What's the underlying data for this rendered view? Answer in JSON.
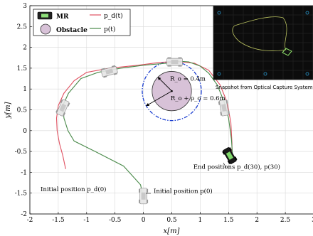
{
  "chart_data": {
    "type": "line",
    "xlabel": "x[m]",
    "ylabel": "y[m]",
    "xlim": [
      -2,
      3
    ],
    "ylim": [
      -2,
      3
    ],
    "xticks": [
      "-2",
      "-1.5",
      "-1",
      "-0.5",
      "0",
      "0.5",
      "1",
      "1.5",
      "2",
      "2.5",
      "3"
    ],
    "yticks": [
      "-2",
      "-1.5",
      "-1",
      "-0.5",
      "0",
      "0.5",
      "1",
      "1.5",
      "2",
      "2.5",
      "3"
    ],
    "grid": true,
    "legend": {
      "placement": "top-left",
      "items": [
        {
          "label": "MR",
          "kind": "robot"
        },
        {
          "label": "Obstacle",
          "kind": "obstacle"
        },
        {
          "label": "p_d(t)",
          "kind": "line",
          "color": "#e05060"
        },
        {
          "label": "p(t)",
          "kind": "line",
          "color": "#4a8a4a"
        }
      ]
    },
    "series": [
      {
        "name": "p_d(t)",
        "color": "#e05060",
        "points": [
          [
            -1.37,
            -0.92
          ],
          [
            -1.42,
            -0.6
          ],
          [
            -1.48,
            -0.3
          ],
          [
            -1.52,
            0.0
          ],
          [
            -1.53,
            0.3
          ],
          [
            -1.5,
            0.6
          ],
          [
            -1.4,
            0.9
          ],
          [
            -1.22,
            1.2
          ],
          [
            -1.0,
            1.4
          ],
          [
            -0.6,
            1.5
          ],
          [
            -0.1,
            1.57
          ],
          [
            0.3,
            1.64
          ],
          [
            0.6,
            1.66
          ],
          [
            0.9,
            1.62
          ],
          [
            1.15,
            1.45
          ],
          [
            1.35,
            1.1
          ],
          [
            1.47,
            0.7
          ],
          [
            1.54,
            0.2
          ],
          [
            1.56,
            -0.3
          ],
          [
            1.56,
            -0.7
          ]
        ]
      },
      {
        "name": "p(t)",
        "color": "#4a8a4a",
        "points": [
          [
            0.0,
            -1.62
          ],
          [
            -0.05,
            -1.3
          ],
          [
            -0.35,
            -0.85
          ],
          [
            -0.85,
            -0.5
          ],
          [
            -1.22,
            -0.25
          ],
          [
            -1.33,
            0.0
          ],
          [
            -1.4,
            0.3
          ],
          [
            -1.42,
            0.6
          ],
          [
            -1.32,
            0.9
          ],
          [
            -1.1,
            1.25
          ],
          [
            -0.8,
            1.4
          ],
          [
            -0.4,
            1.5
          ],
          [
            0.0,
            1.57
          ],
          [
            0.4,
            1.62
          ],
          [
            0.6,
            1.67
          ],
          [
            0.8,
            1.65
          ],
          [
            1.0,
            1.55
          ],
          [
            1.15,
            1.38
          ],
          [
            1.3,
            1.1
          ],
          [
            1.42,
            0.7
          ],
          [
            1.5,
            0.3
          ],
          [
            1.55,
            -0.2
          ],
          [
            1.57,
            -0.6
          ]
        ]
      }
    ],
    "obstacle": {
      "center": [
        0.5,
        0.95
      ],
      "radius": 0.4,
      "safety_radius": 0.6
    },
    "robots": [
      {
        "x": 0.0,
        "y": -1.57,
        "angle": 90,
        "style": "faded"
      },
      {
        "x": -1.42,
        "y": 0.55,
        "angle": 65,
        "style": "faded"
      },
      {
        "x": -0.6,
        "y": 1.42,
        "angle": 15,
        "style": "faded"
      },
      {
        "x": 0.55,
        "y": 1.65,
        "angle": 0,
        "style": "faded"
      },
      {
        "x": 1.42,
        "y": 0.55,
        "angle": -80,
        "style": "faded"
      },
      {
        "x": 1.52,
        "y": -0.6,
        "angle": -60,
        "style": "dark"
      }
    ],
    "annotations": [
      {
        "text": "R_o = 0.4m",
        "x": 0.47,
        "y": 1.2
      },
      {
        "text": "R_o + ρ_o = 0.6m",
        "x": 0.48,
        "y": 0.73
      },
      {
        "text": "Initial position p_d(0)",
        "x": -2.0,
        "y": -1.45
      },
      {
        "text": "Initial position p(0)",
        "x": 0.18,
        "y": -1.5
      },
      {
        "text": "End positions p_d(30), p(30)",
        "x": 0.88,
        "y": -0.92
      },
      {
        "text": "Snapshot from Optical Capture System",
        "x": 1.58,
        "y": 1.0
      }
    ]
  }
}
